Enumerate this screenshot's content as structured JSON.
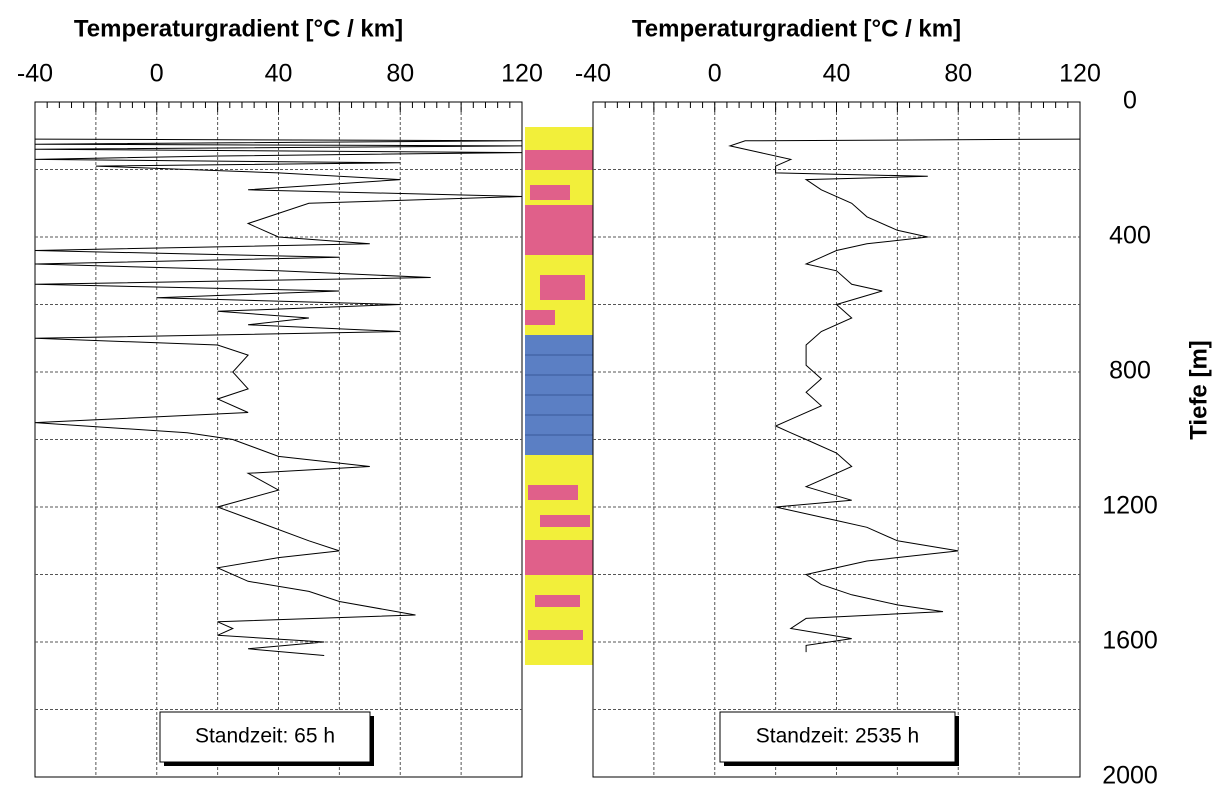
{
  "chart_data": [
    {
      "type": "line",
      "title": "Temperaturgradient [°C / km]",
      "annotation": "Standzeit: 65 h",
      "color": "#000000",
      "xlim": [
        -40,
        120
      ],
      "xticks": [
        -40,
        0,
        40,
        80,
        120
      ],
      "ylim": [
        0,
        2000
      ],
      "depths": [
        110,
        115,
        125,
        130,
        140,
        150,
        160,
        170,
        180,
        190,
        210,
        230,
        260,
        280,
        300,
        330,
        360,
        400,
        420,
        440,
        460,
        480,
        500,
        520,
        540,
        560,
        580,
        600,
        620,
        640,
        660,
        680,
        700,
        720,
        750,
        800,
        850,
        880,
        920,
        950,
        980,
        1000,
        1050,
        1080,
        1100,
        1150,
        1200,
        1250,
        1300,
        1330,
        1350,
        1380,
        1420,
        1450,
        1480,
        1520,
        1540,
        1560,
        1580,
        1600,
        1620,
        1640
      ],
      "values": [
        -40,
        120,
        -40,
        120,
        -40,
        120,
        20,
        -40,
        80,
        -20,
        40,
        80,
        30,
        120,
        50,
        40,
        30,
        40,
        70,
        -40,
        60,
        -40,
        40,
        90,
        -40,
        60,
        0,
        80,
        20,
        50,
        30,
        80,
        -40,
        20,
        30,
        25,
        30,
        20,
        30,
        -40,
        10,
        25,
        40,
        70,
        30,
        40,
        20,
        35,
        50,
        60,
        40,
        20,
        30,
        50,
        60,
        85,
        20,
        25,
        20,
        55,
        30,
        55
      ]
    },
    {
      "type": "line",
      "title": "Temperaturgradient [°C / km]",
      "annotation": "Standzeit: 2535 h",
      "color": "#000000",
      "xlim": [
        -40,
        120
      ],
      "xticks": [
        -40,
        0,
        40,
        80,
        120
      ],
      "ylim": [
        0,
        2000
      ],
      "yticks": [
        0,
        400,
        800,
        1200,
        1600,
        2000
      ],
      "ylabel": "Tiefe [m]",
      "depths": [
        110,
        115,
        130,
        150,
        170,
        190,
        210,
        220,
        230,
        260,
        300,
        340,
        380,
        400,
        420,
        440,
        460,
        480,
        500,
        540,
        560,
        600,
        640,
        680,
        720,
        780,
        820,
        860,
        900,
        940,
        960,
        980,
        1000,
        1040,
        1080,
        1100,
        1140,
        1180,
        1200,
        1240,
        1260,
        1300,
        1330,
        1360,
        1380,
        1400,
        1430,
        1460,
        1490,
        1510,
        1530,
        1560,
        1590,
        1610,
        1630
      ],
      "values": [
        120,
        10,
        5,
        15,
        25,
        20,
        20,
        70,
        30,
        35,
        45,
        50,
        60,
        70,
        50,
        40,
        35,
        30,
        40,
        45,
        55,
        40,
        45,
        35,
        30,
        30,
        35,
        30,
        35,
        25,
        20,
        25,
        30,
        40,
        45,
        40,
        30,
        45,
        20,
        40,
        50,
        60,
        80,
        50,
        40,
        30,
        35,
        45,
        60,
        75,
        30,
        25,
        45,
        30,
        30
      ]
    }
  ]
}
